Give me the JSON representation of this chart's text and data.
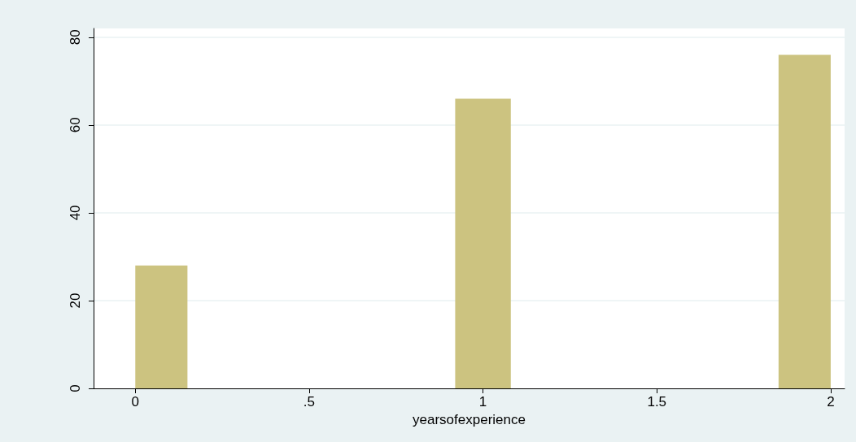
{
  "chart_data": {
    "type": "histogram",
    "xlabel": "yearsofexperience",
    "bins": [
      0,
      0.15,
      0.92,
      1.08,
      1.85,
      2
    ],
    "values": [
      28,
      0,
      66,
      0,
      76
    ],
    "color": "#ccc380",
    "xlim": [
      -0.12,
      2.04
    ],
    "xticks": [
      0,
      {
        "value": 0.5,
        "label": ".5"
      },
      1,
      1.5,
      2
    ],
    "ylim": [
      0,
      82
    ],
    "yticks": [
      0,
      20,
      40,
      60,
      80
    ],
    "grid": "y"
  }
}
